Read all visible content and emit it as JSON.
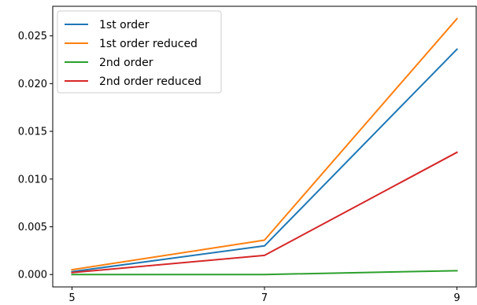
{
  "chart_data": {
    "type": "line",
    "x": [
      5,
      7,
      9
    ],
    "xlim": [
      4.8,
      9.2
    ],
    "ylim": [
      -0.0013,
      0.0281
    ],
    "xticks": [
      5,
      7,
      9
    ],
    "xtick_labels": [
      "5",
      "7",
      "9"
    ],
    "yticks": [
      0.0,
      0.005,
      0.01,
      0.015,
      0.02,
      0.025
    ],
    "ytick_labels": [
      "0.000",
      "0.005",
      "0.010",
      "0.015",
      "0.020",
      "0.025"
    ],
    "grid": false,
    "legend_position": "top-left",
    "series": [
      {
        "name": "1st order",
        "color": "#1f77b4",
        "values": [
          0.0003,
          0.003,
          0.0236
        ]
      },
      {
        "name": "1st order reduced",
        "color": "#ff7f0e",
        "values": [
          0.0005,
          0.0036,
          0.0268
        ]
      },
      {
        "name": "2nd order",
        "color": "#2ca02c",
        "values": [
          0.0,
          0.0,
          0.0004
        ]
      },
      {
        "name": "2nd order reduced",
        "color": "#d62728",
        "values": [
          0.0002,
          0.002,
          0.0128
        ]
      }
    ]
  }
}
